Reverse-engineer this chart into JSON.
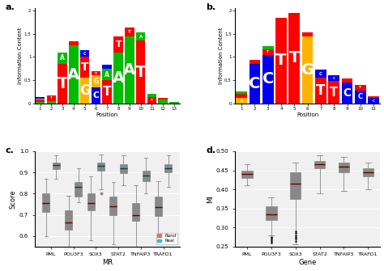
{
  "panel_c": {
    "genes": [
      "PML",
      "POU3F3",
      "SOX3",
      "STAT2",
      "TNFAIP3",
      "TRAFD1"
    ],
    "rand": {
      "PML": {
        "whislo": 0.6,
        "q1": 0.715,
        "med": 0.755,
        "q3": 0.8,
        "whishi": 0.87
      },
      "POU3F3": {
        "whislo": 0.47,
        "q1": 0.63,
        "med": 0.665,
        "q3": 0.72,
        "whishi": 0.79
      },
      "SOX3": {
        "whislo": 0.58,
        "q1": 0.72,
        "med": 0.755,
        "q3": 0.8,
        "whishi": 0.88
      },
      "STAT2": {
        "whislo": 0.56,
        "q1": 0.7,
        "med": 0.74,
        "q3": 0.785,
        "whishi": 0.855
      },
      "TNFAIP3": {
        "whislo": 0.55,
        "q1": 0.67,
        "med": 0.7,
        "q3": 0.755,
        "whishi": 0.84
      },
      "TRAFD1": {
        "whislo": 0.58,
        "q1": 0.695,
        "med": 0.735,
        "q3": 0.785,
        "whishi": 0.86
      }
    },
    "real": {
      "PML": {
        "whislo": 0.87,
        "q1": 0.915,
        "med": 0.935,
        "q3": 0.945,
        "whishi": 0.98
      },
      "POU3F3": {
        "whislo": 0.76,
        "q1": 0.785,
        "med": 0.83,
        "q3": 0.855,
        "whishi": 0.92
      },
      "SOX3": {
        "whislo": 0.82,
        "q1": 0.91,
        "med": 0.93,
        "q3": 0.945,
        "whishi": 0.985
      },
      "STAT2": {
        "whislo": 0.84,
        "q1": 0.895,
        "med": 0.92,
        "q3": 0.94,
        "whishi": 0.98
      },
      "TNFAIP3": {
        "whislo": 0.8,
        "q1": 0.86,
        "med": 0.885,
        "q3": 0.91,
        "whishi": 0.97
      },
      "TRAFD1": {
        "whislo": 0.83,
        "q1": 0.9,
        "med": 0.92,
        "q3": 0.94,
        "whishi": 0.98
      }
    },
    "ylim": [
      0.55,
      1.0
    ],
    "yticks": [
      0.6,
      0.7,
      0.8,
      0.9,
      1.0
    ],
    "xlabel": "MR",
    "ylabel": "Score"
  },
  "panel_d": {
    "genes": [
      "PML",
      "POU3F3",
      "SOX3",
      "STAT2",
      "TNFAIP3",
      "TRAFD1"
    ],
    "rand": {
      "PML": {
        "whislo": 0.41,
        "q1": 0.43,
        "med": 0.44,
        "q3": 0.45,
        "whishi": 0.465
      },
      "POU3F3": {
        "whislo": 0.28,
        "q1": 0.32,
        "med": 0.335,
        "q3": 0.355,
        "whishi": 0.38,
        "fliers": [
          0.275,
          0.272,
          0.268,
          0.265,
          0.26
        ]
      },
      "SOX3": {
        "whislo": 0.255,
        "q1": 0.375,
        "med": 0.415,
        "q3": 0.445,
        "whishi": 0.47,
        "fliers": [
          0.245,
          0.238,
          0.232,
          0.228,
          0.225,
          0.22,
          0.265,
          0.27,
          0.275,
          0.28,
          0.285,
          0.29
        ]
      },
      "STAT2": {
        "whislo": 0.39,
        "q1": 0.455,
        "med": 0.465,
        "q3": 0.475,
        "whishi": 0.49
      },
      "TNFAIP3": {
        "whislo": 0.395,
        "q1": 0.445,
        "med": 0.46,
        "q3": 0.47,
        "whishi": 0.485
      },
      "TRAFD1": {
        "whislo": 0.4,
        "q1": 0.435,
        "med": 0.445,
        "q3": 0.455,
        "whishi": 0.47
      }
    },
    "ylim": [
      0.25,
      0.5
    ],
    "yticks": [
      0.25,
      0.3,
      0.35,
      0.4,
      0.45,
      0.5
    ],
    "xlabel": "Gene",
    "ylabel": "MI"
  },
  "colors": {
    "rand": "#E07070",
    "real": "#3BBFBF",
    "background": "#F0F0F0",
    "grid": "#FFFFFF"
  },
  "logo_a": {
    "positions": [
      [
        [
          "A",
          0.04,
          "#00BB00"
        ],
        [
          "T",
          0.04,
          "#FF0000"
        ],
        [
          "G",
          0.03,
          "#FFB300"
        ],
        [
          "C",
          0.03,
          "#0000EE"
        ]
      ],
      [
        [
          "A",
          0.06,
          "#00BB00"
        ],
        [
          "T",
          0.12,
          "#FF0000"
        ]
      ],
      [
        [
          "T",
          0.85,
          "#FF0000"
        ],
        [
          "A",
          0.25,
          "#00BB00"
        ]
      ],
      [
        [
          "A",
          1.25,
          "#00BB00"
        ],
        [
          "T",
          0.08,
          "#FF0000"
        ]
      ],
      [
        [
          "G",
          0.55,
          "#FFB300"
        ],
        [
          "T",
          0.45,
          "#FF0000"
        ],
        [
          "C",
          0.15,
          "#0000EE"
        ]
      ],
      [
        [
          "C",
          0.35,
          "#0000EE"
        ],
        [
          "G",
          0.25,
          "#FFB300"
        ],
        [
          "T",
          0.1,
          "#FF0000"
        ]
      ],
      [
        [
          "T",
          0.5,
          "#FF0000"
        ],
        [
          "A",
          0.25,
          "#00BB00"
        ],
        [
          "C",
          0.08,
          "#0000EE"
        ]
      ],
      [
        [
          "A",
          1.1,
          "#00BB00"
        ],
        [
          "T",
          0.35,
          "#FF0000"
        ]
      ],
      [
        [
          "A",
          1.45,
          "#00BB00"
        ],
        [
          "T",
          0.18,
          "#FF0000"
        ]
      ],
      [
        [
          "T",
          1.35,
          "#FF0000"
        ],
        [
          "A",
          0.18,
          "#00BB00"
        ]
      ],
      [
        [
          "T",
          0.13,
          "#FF0000"
        ],
        [
          "A",
          0.08,
          "#00BB00"
        ]
      ],
      [
        [
          "A",
          0.08,
          "#00BB00"
        ],
        [
          "T",
          0.04,
          "#FF0000"
        ]
      ],
      [
        [
          "A",
          0.04,
          "#00BB00"
        ]
      ]
    ]
  },
  "logo_b": {
    "positions": [
      [
        [
          "G",
          0.12,
          "#FFB300"
        ],
        [
          "T",
          0.08,
          "#FF0000"
        ],
        [
          "A",
          0.06,
          "#00BB00"
        ]
      ],
      [
        [
          "C",
          0.85,
          "#0000EE"
        ],
        [
          "T",
          0.08,
          "#FF0000"
        ]
      ],
      [
        [
          "C",
          1.05,
          "#0000EE"
        ],
        [
          "T",
          0.12,
          "#FF0000"
        ],
        [
          "A",
          0.06,
          "#00BB00"
        ]
      ],
      [
        [
          "T",
          1.85,
          "#FF0000"
        ]
      ],
      [
        [
          "T",
          1.95,
          "#FF0000"
        ]
      ],
      [
        [
          "G",
          1.45,
          "#FFB300"
        ],
        [
          "T",
          0.08,
          "#FF0000"
        ]
      ],
      [
        [
          "T",
          0.55,
          "#FF0000"
        ],
        [
          "C",
          0.18,
          "#0000EE"
        ]
      ],
      [
        [
          "T",
          0.48,
          "#FF0000"
        ],
        [
          "C",
          0.12,
          "#0000EE"
        ]
      ],
      [
        [
          "C",
          0.45,
          "#0000EE"
        ],
        [
          "T",
          0.08,
          "#FF0000"
        ]
      ],
      [
        [
          "C",
          0.28,
          "#0000EE"
        ],
        [
          "T",
          0.12,
          "#FF0000"
        ]
      ],
      [
        [
          "C",
          0.12,
          "#0000EE"
        ],
        [
          "T",
          0.04,
          "#FF0000"
        ]
      ]
    ]
  }
}
